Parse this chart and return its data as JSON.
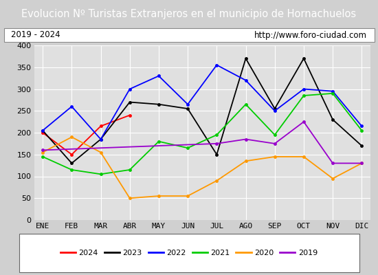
{
  "title": "Evolucion Nº Turistas Extranjeros en el municipio de Hornachuelos",
  "subtitle_left": "2019 - 2024",
  "subtitle_right": "http://www.foro-ciudad.com",
  "months": [
    "ENE",
    "FEB",
    "MAR",
    "ABR",
    "MAY",
    "JUN",
    "JUL",
    "AGO",
    "SEP",
    "OCT",
    "NOV",
    "DIC"
  ],
  "ylim": [
    0,
    400
  ],
  "yticks": [
    0,
    50,
    100,
    150,
    200,
    250,
    300,
    350,
    400
  ],
  "series_order": [
    "2024",
    "2023",
    "2022",
    "2021",
    "2020",
    "2019"
  ],
  "series": {
    "2024": {
      "color": "#ff0000",
      "values": [
        200,
        150,
        215,
        240,
        null,
        null,
        null,
        null,
        null,
        null,
        null,
        null
      ]
    },
    "2023": {
      "color": "#000000",
      "values": [
        205,
        130,
        185,
        270,
        265,
        255,
        150,
        370,
        255,
        370,
        230,
        170
      ]
    },
    "2022": {
      "color": "#0000ff",
      "values": [
        205,
        260,
        185,
        300,
        330,
        265,
        355,
        320,
        250,
        300,
        295,
        215
      ]
    },
    "2021": {
      "color": "#00cc00",
      "values": [
        145,
        115,
        105,
        115,
        180,
        165,
        195,
        265,
        195,
        285,
        290,
        205
      ]
    },
    "2020": {
      "color": "#ff9900",
      "values": [
        155,
        190,
        155,
        50,
        55,
        55,
        90,
        135,
        145,
        145,
        95,
        130
      ]
    },
    "2019": {
      "color": "#9900cc",
      "values": [
        160,
        null,
        null,
        null,
        null,
        null,
        175,
        185,
        175,
        225,
        130,
        130
      ]
    }
  },
  "title_bg_color": "#4472c4",
  "title_color": "#ffffff",
  "title_fontsize": 10.5,
  "subtitle_fontsize": 8.5,
  "outer_bg_color": "#d0d0d0",
  "plot_bg_color": "#e0e0e0",
  "grid_color": "#ffffff",
  "legend_fontsize": 8,
  "axis_label_fontsize": 8
}
